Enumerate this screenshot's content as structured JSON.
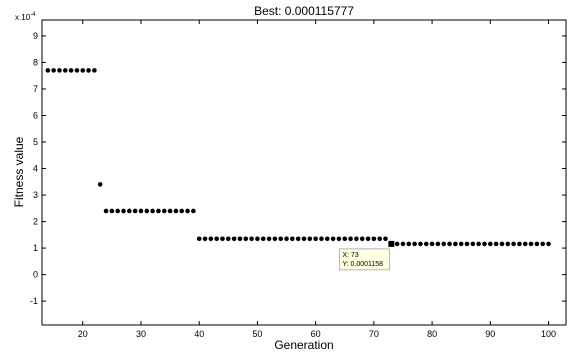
{
  "chart_data": {
    "type": "scatter",
    "title": "Best: 0.000115777",
    "xlabel": "Generation",
    "ylabel": "Fitness value",
    "y_exponent_label": "x 10",
    "y_exponent_power": "-4",
    "y_scale_factor": 0.0001,
    "xlim": [
      13,
      103
    ],
    "ylim": [
      -1.9,
      9.6
    ],
    "x_ticks": [
      20,
      30,
      40,
      50,
      60,
      70,
      80,
      90,
      100
    ],
    "y_ticks": [
      -1,
      0,
      1,
      2,
      3,
      4,
      5,
      6,
      7,
      8,
      9
    ],
    "grid": false,
    "marker_color": "#000000",
    "series": [
      {
        "points": [
          [
            14,
            7.7
          ],
          [
            15,
            7.7
          ],
          [
            16,
            7.7
          ],
          [
            17,
            7.7
          ],
          [
            18,
            7.7
          ],
          [
            19,
            7.7
          ],
          [
            20,
            7.7
          ],
          [
            21,
            7.7
          ],
          [
            22,
            7.7
          ],
          [
            23,
            3.4
          ],
          [
            24,
            2.4
          ],
          [
            25,
            2.4
          ],
          [
            26,
            2.4
          ],
          [
            27,
            2.4
          ],
          [
            28,
            2.4
          ],
          [
            29,
            2.4
          ],
          [
            30,
            2.4
          ],
          [
            31,
            2.4
          ],
          [
            32,
            2.4
          ],
          [
            33,
            2.4
          ],
          [
            34,
            2.4
          ],
          [
            35,
            2.4
          ],
          [
            36,
            2.4
          ],
          [
            37,
            2.4
          ],
          [
            38,
            2.4
          ],
          [
            39,
            2.4
          ],
          [
            40,
            1.35
          ],
          [
            41,
            1.35
          ],
          [
            42,
            1.35
          ],
          [
            43,
            1.35
          ],
          [
            44,
            1.35
          ],
          [
            45,
            1.35
          ],
          [
            46,
            1.35
          ],
          [
            47,
            1.35
          ],
          [
            48,
            1.35
          ],
          [
            49,
            1.35
          ],
          [
            50,
            1.35
          ],
          [
            51,
            1.35
          ],
          [
            52,
            1.35
          ],
          [
            53,
            1.35
          ],
          [
            54,
            1.35
          ],
          [
            55,
            1.35
          ],
          [
            56,
            1.35
          ],
          [
            57,
            1.35
          ],
          [
            58,
            1.35
          ],
          [
            59,
            1.35
          ],
          [
            60,
            1.35
          ],
          [
            61,
            1.35
          ],
          [
            62,
            1.35
          ],
          [
            63,
            1.35
          ],
          [
            64,
            1.35
          ],
          [
            65,
            1.35
          ],
          [
            66,
            1.35
          ],
          [
            67,
            1.35
          ],
          [
            68,
            1.35
          ],
          [
            69,
            1.35
          ],
          [
            70,
            1.35
          ],
          [
            71,
            1.35
          ],
          [
            72,
            1.35
          ],
          [
            74,
            1.158
          ],
          [
            75,
            1.158
          ],
          [
            76,
            1.158
          ],
          [
            77,
            1.158
          ],
          [
            78,
            1.158
          ],
          [
            79,
            1.158
          ],
          [
            80,
            1.158
          ],
          [
            81,
            1.158
          ],
          [
            82,
            1.158
          ],
          [
            83,
            1.158
          ],
          [
            84,
            1.158
          ],
          [
            85,
            1.158
          ],
          [
            86,
            1.158
          ],
          [
            87,
            1.158
          ],
          [
            88,
            1.158
          ],
          [
            89,
            1.158
          ],
          [
            90,
            1.158
          ],
          [
            91,
            1.158
          ],
          [
            92,
            1.158
          ],
          [
            93,
            1.158
          ],
          [
            94,
            1.158
          ],
          [
            95,
            1.158
          ],
          [
            96,
            1.158
          ],
          [
            97,
            1.158
          ],
          [
            98,
            1.158
          ],
          [
            99,
            1.158
          ],
          [
            100,
            1.158
          ]
        ]
      }
    ],
    "datatip": {
      "x": 73,
      "y": 1.158,
      "line1": "X: 73",
      "line2": "Y: 0.0001158"
    }
  }
}
